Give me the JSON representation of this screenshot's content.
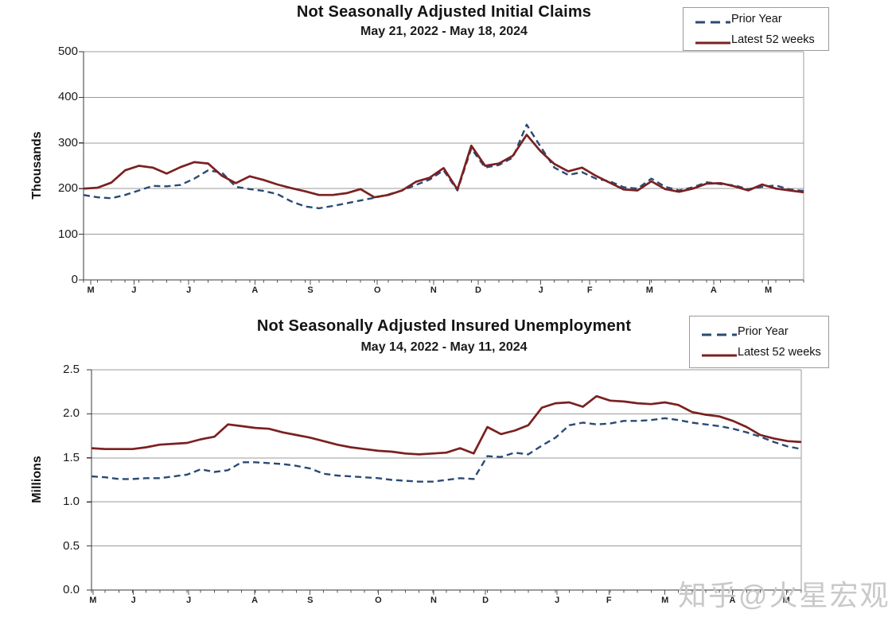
{
  "watermark": {
    "text": "知乎@火星宏观"
  },
  "chart_data": [
    {
      "type": "line",
      "title": "Not Seasonally Adjusted Initial Claims",
      "subtitle": "May 21, 2022  -  May 18, 2024",
      "y_axis_title": "Thousands",
      "ylim": [
        0,
        500
      ],
      "yticks": [
        "500",
        "400",
        "300",
        "200",
        "100",
        "0"
      ],
      "grid": "horizontal",
      "legend_position": "top-right",
      "x_month_labels": [
        {
          "label": "M",
          "pos": 0.01
        },
        {
          "label": "J",
          "pos": 0.07
        },
        {
          "label": "J",
          "pos": 0.146
        },
        {
          "label": "A",
          "pos": 0.238
        },
        {
          "label": "S",
          "pos": 0.315
        },
        {
          "label": "O",
          "pos": 0.408
        },
        {
          "label": "N",
          "pos": 0.486
        },
        {
          "label": "D",
          "pos": 0.548
        },
        {
          "label": "J",
          "pos": 0.635
        },
        {
          "label": "F",
          "pos": 0.703
        },
        {
          "label": "M",
          "pos": 0.786
        },
        {
          "label": "A",
          "pos": 0.875
        },
        {
          "label": "M",
          "pos": 0.951
        }
      ],
      "series": [
        {
          "name": "Prior Year",
          "style": "dashed",
          "color": "#2A4A74",
          "values": [
            186,
            181,
            179,
            186,
            196,
            206,
            205,
            208,
            222,
            240,
            235,
            204,
            199,
            195,
            188,
            172,
            161,
            157,
            162,
            168,
            174,
            180,
            187,
            196,
            208,
            220,
            240,
            196,
            288,
            246,
            252,
            268,
            340,
            292,
            246,
            230,
            236,
            222,
            216,
            203,
            200,
            222,
            204,
            196,
            203,
            214,
            210,
            207,
            199,
            204,
            207,
            198,
            195
          ]
        },
        {
          "name": "Latest 52 weeks",
          "style": "solid",
          "color": "#7B2020",
          "values": [
            200,
            202,
            213,
            240,
            250,
            246,
            233,
            247,
            258,
            255,
            228,
            212,
            227,
            219,
            209,
            201,
            194,
            186,
            186,
            190,
            199,
            181,
            186,
            196,
            215,
            224,
            245,
            198,
            294,
            250,
            255,
            272,
            318,
            282,
            254,
            238,
            246,
            228,
            213,
            198,
            196,
            216,
            199,
            193,
            200,
            211,
            212,
            205,
            196,
            209,
            200,
            196,
            192
          ]
        }
      ]
    },
    {
      "type": "line",
      "title": "Not Seasonally Adjusted Insured Unemployment",
      "subtitle": "May 14, 2022  -  May 11, 2024",
      "y_axis_title": "Millions",
      "ylim": [
        0,
        2.5
      ],
      "yticks": [
        "2.5",
        "2.0",
        "1.5",
        "1.0",
        "0.5",
        "0.0"
      ],
      "grid": "horizontal",
      "legend_position": "top-right",
      "x_month_labels": [
        {
          "label": "M",
          "pos": 0.002
        },
        {
          "label": "J",
          "pos": 0.059
        },
        {
          "label": "J",
          "pos": 0.137
        },
        {
          "label": "A",
          "pos": 0.23
        },
        {
          "label": "S",
          "pos": 0.308
        },
        {
          "label": "O",
          "pos": 0.404
        },
        {
          "label": "N",
          "pos": 0.482
        },
        {
          "label": "D",
          "pos": 0.555
        },
        {
          "label": "J",
          "pos": 0.656
        },
        {
          "label": "F",
          "pos": 0.729
        },
        {
          "label": "M",
          "pos": 0.808
        },
        {
          "label": "A",
          "pos": 0.903
        },
        {
          "label": "M",
          "pos": 0.979
        }
      ],
      "series": [
        {
          "name": "Prior Year",
          "style": "dashed",
          "color": "#2A4A74",
          "values": [
            1.29,
            1.28,
            1.26,
            1.26,
            1.27,
            1.27,
            1.29,
            1.31,
            1.37,
            1.34,
            1.36,
            1.45,
            1.45,
            1.44,
            1.43,
            1.41,
            1.38,
            1.32,
            1.3,
            1.29,
            1.28,
            1.27,
            1.25,
            1.24,
            1.23,
            1.23,
            1.25,
            1.27,
            1.26,
            1.52,
            1.51,
            1.56,
            1.54,
            1.64,
            1.73,
            1.87,
            1.9,
            1.88,
            1.89,
            1.92,
            1.92,
            1.93,
            1.95,
            1.93,
            1.9,
            1.88,
            1.86,
            1.83,
            1.79,
            1.74,
            1.68,
            1.63,
            1.6
          ]
        },
        {
          "name": "Latest 52 weeks",
          "style": "solid",
          "color": "#7B2020",
          "values": [
            1.61,
            1.6,
            1.6,
            1.6,
            1.62,
            1.65,
            1.66,
            1.67,
            1.71,
            1.74,
            1.88,
            1.86,
            1.84,
            1.83,
            1.79,
            1.76,
            1.73,
            1.69,
            1.65,
            1.62,
            1.6,
            1.58,
            1.57,
            1.55,
            1.54,
            1.55,
            1.56,
            1.61,
            1.55,
            1.85,
            1.77,
            1.81,
            1.87,
            2.07,
            2.12,
            2.13,
            2.08,
            2.2,
            2.15,
            2.14,
            2.12,
            2.11,
            2.13,
            2.1,
            2.02,
            1.99,
            1.97,
            1.92,
            1.85,
            1.76,
            1.72,
            1.69,
            1.68
          ]
        }
      ]
    }
  ]
}
